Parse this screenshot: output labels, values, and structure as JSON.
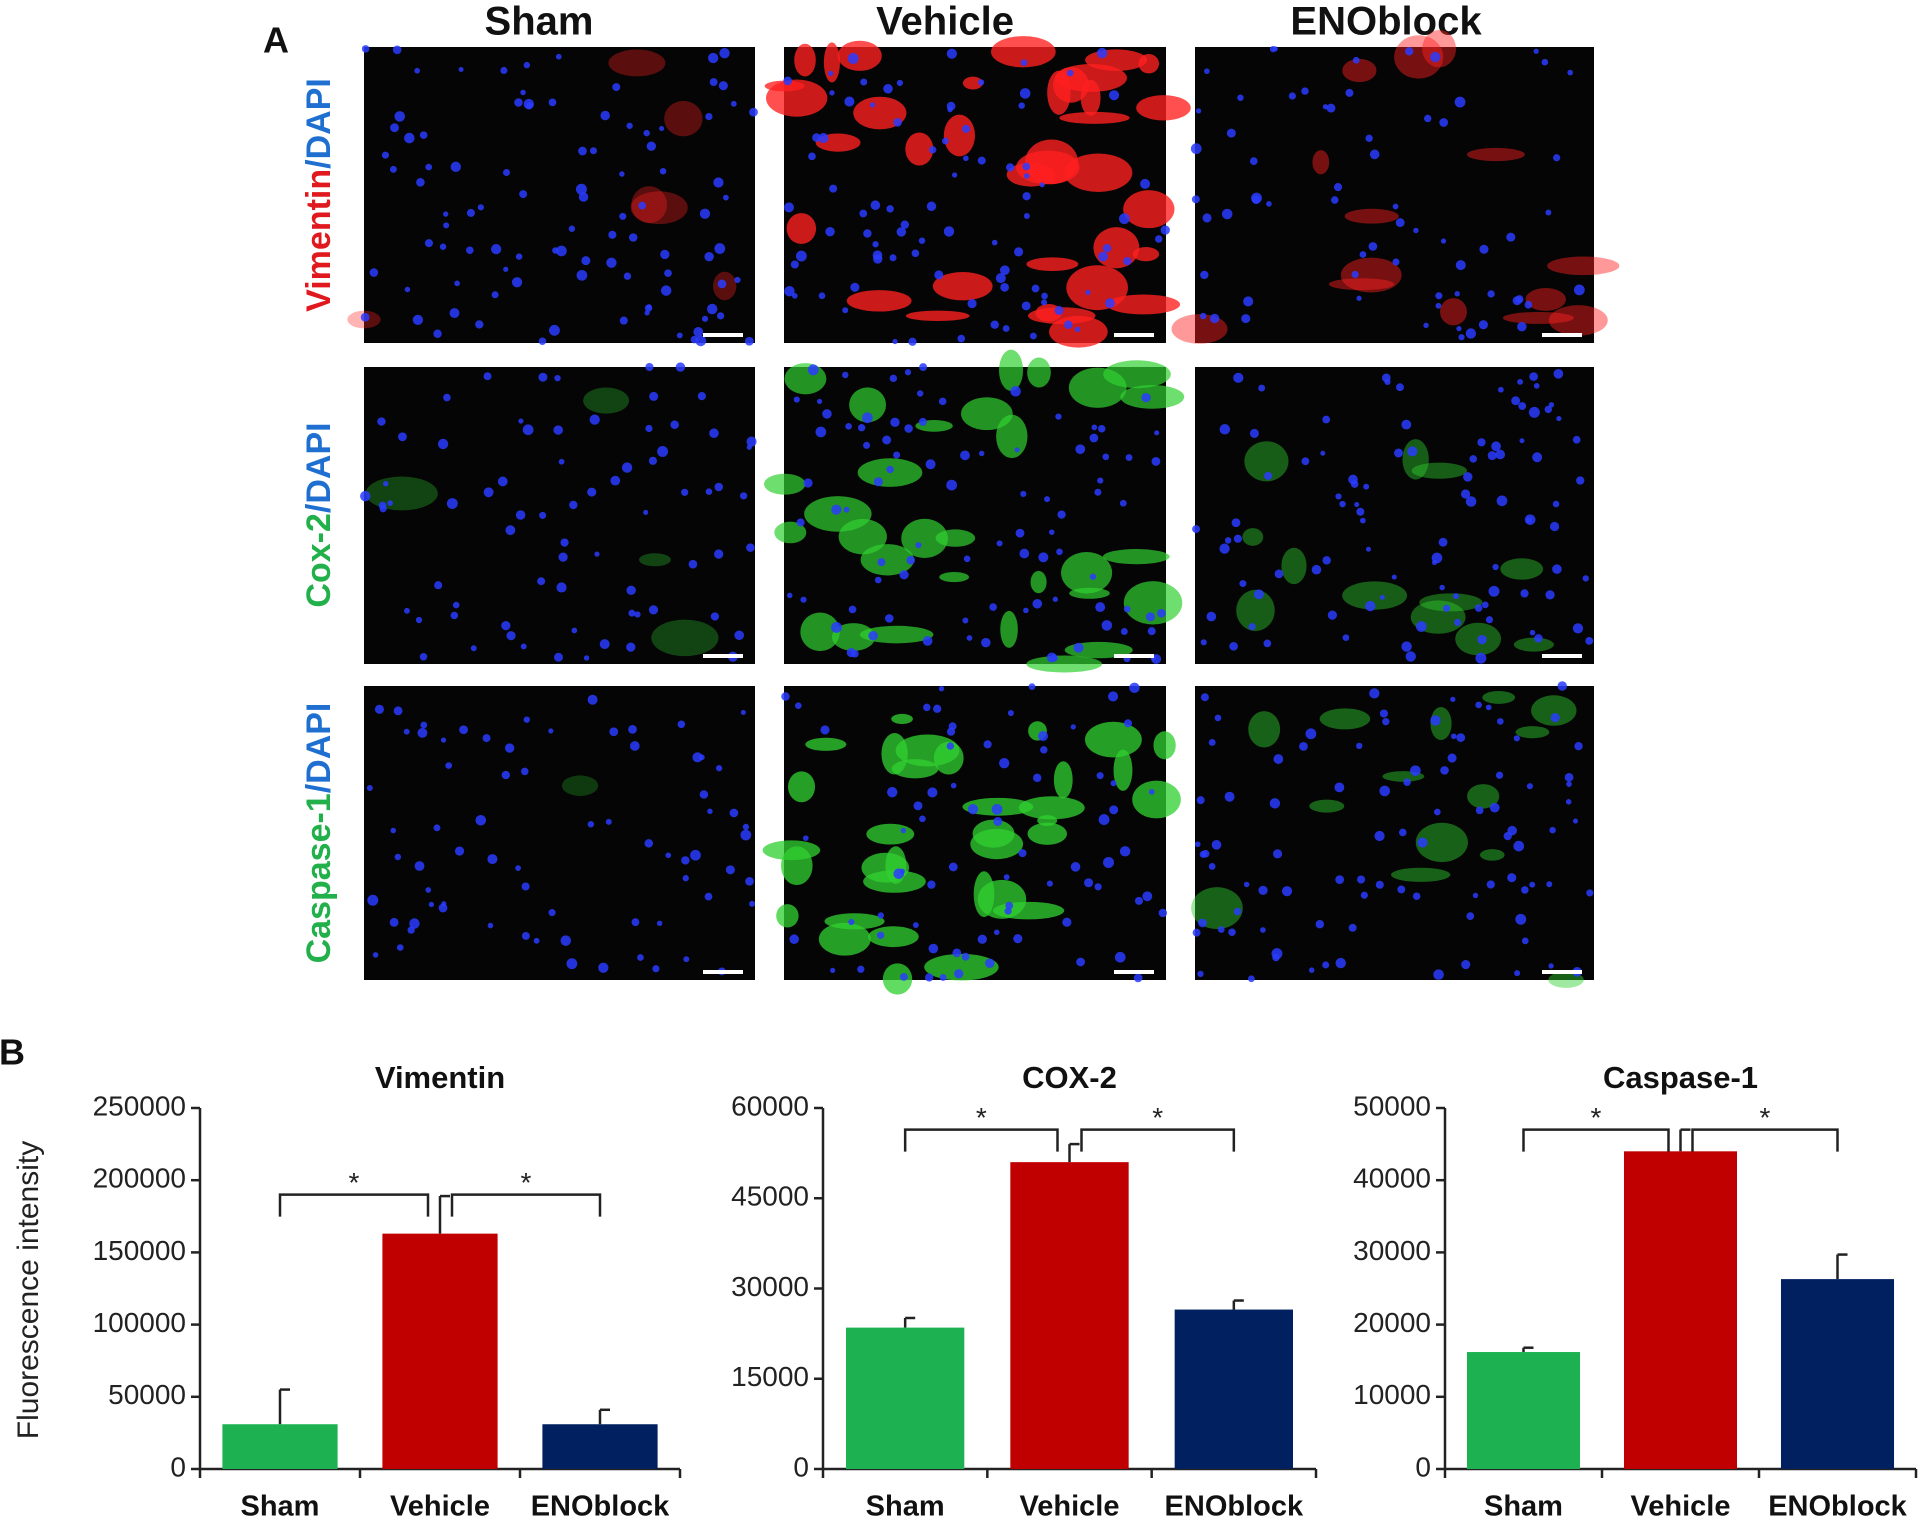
{
  "panel_a": {
    "label": "A",
    "columns": [
      "Sham",
      "Vehicle",
      "ENOblock"
    ],
    "rows": [
      [
        "Vimentin",
        "/DAPI"
      ],
      [
        "Cox-2",
        "/DAPI"
      ],
      [
        "Caspase-1",
        "/DAPI"
      ]
    ]
  },
  "panel_b": {
    "label": "B",
    "y_label": "Fluorescence intensity"
  },
  "chart_data": [
    {
      "type": "bar",
      "title": "Vimentin",
      "categories": [
        "Sham",
        "Vehicle",
        "ENOblock"
      ],
      "values": [
        31000,
        163000,
        31000
      ],
      "errors": [
        24000,
        26000,
        10000
      ],
      "colors": [
        "#1eb152",
        "#c00000",
        "#002060"
      ],
      "ylim": [
        0,
        250000
      ],
      "yticks": [
        0,
        50000,
        100000,
        150000,
        200000,
        250000
      ],
      "significance": [
        {
          "between": [
            "Sham",
            "Vehicle"
          ],
          "label": "*"
        },
        {
          "between": [
            "Vehicle",
            "ENOblock"
          ],
          "label": "*"
        }
      ]
    },
    {
      "type": "bar",
      "title": "COX-2",
      "categories": [
        "Sham",
        "Vehicle",
        "ENOblock"
      ],
      "values": [
        23500,
        51000,
        26500
      ],
      "errors": [
        1600,
        3000,
        1500
      ],
      "colors": [
        "#1eb152",
        "#c00000",
        "#002060"
      ],
      "ylim": [
        0,
        60000
      ],
      "yticks": [
        0,
        15000,
        30000,
        45000,
        60000
      ],
      "significance": [
        {
          "between": [
            "Sham",
            "Vehicle"
          ],
          "label": "*"
        },
        {
          "between": [
            "Vehicle",
            "ENOblock"
          ],
          "label": "*"
        }
      ]
    },
    {
      "type": "bar",
      "title": "Caspase-1",
      "categories": [
        "Sham",
        "Vehicle",
        "ENOblock"
      ],
      "values": [
        16200,
        44000,
        26300
      ],
      "errors": [
        600,
        3000,
        3400
      ],
      "colors": [
        "#1eb152",
        "#c00000",
        "#002060"
      ],
      "ylim": [
        0,
        50000
      ],
      "yticks": [
        0,
        10000,
        20000,
        30000,
        40000,
        50000
      ],
      "significance": [
        {
          "between": [
            "Sham",
            "Vehicle"
          ],
          "label": "*"
        },
        {
          "between": [
            "Vehicle",
            "ENOblock"
          ],
          "label": "*"
        }
      ]
    }
  ]
}
